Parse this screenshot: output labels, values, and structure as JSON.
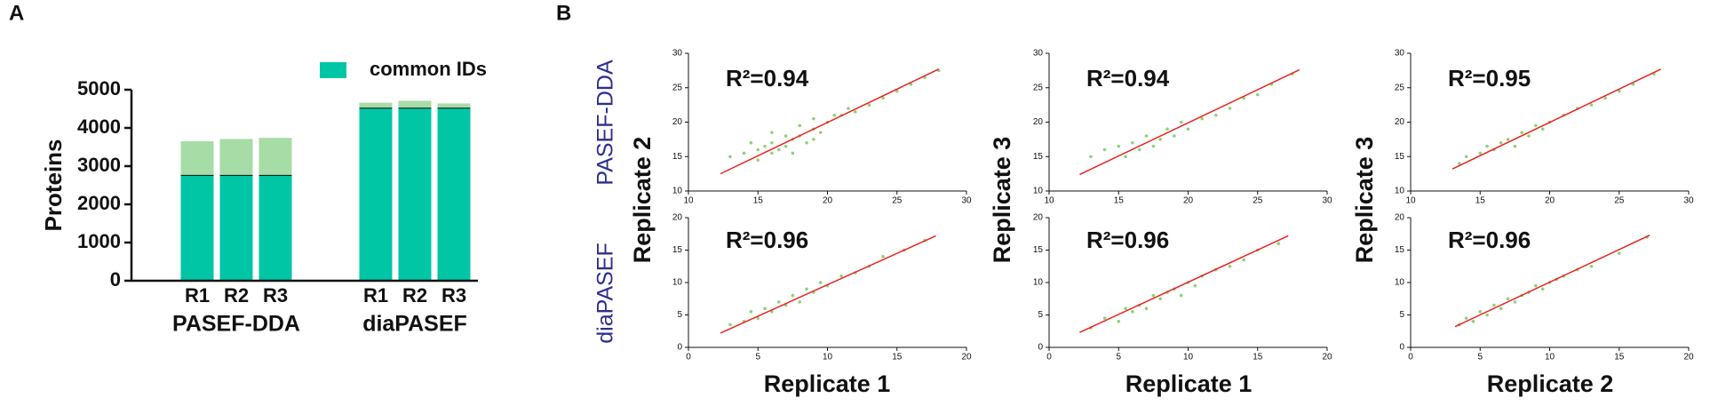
{
  "figure": {
    "panel_labels": [
      "A",
      "B"
    ],
    "row_labels": [
      "PASEF-DDA",
      "diaPASEF"
    ],
    "column_axis_labels": [
      {
        "y": "Replicate 2",
        "x": "Replicate 1"
      },
      {
        "y": "Replicate 3",
        "x": "Replicate 1"
      },
      {
        "y": "Replicate 3",
        "x": "Replicate 2"
      }
    ]
  },
  "chart_data": [
    {
      "type": "bar",
      "ylabel": "Proteins",
      "categories": [
        "R1",
        "R2",
        "R3",
        "R1",
        "R2",
        "R3"
      ],
      "group_labels": [
        "PASEF-DDA",
        "diaPASEF"
      ],
      "series": [
        {
          "name": "common IDs",
          "color": "#00c6a6",
          "values": [
            2770,
            2770,
            2770,
            4530,
            4530,
            4530
          ]
        },
        {
          "color": "#a6dca5",
          "values": [
            880,
            940,
            970,
            130,
            180,
            110
          ]
        }
      ],
      "ylim": [
        0,
        5000
      ],
      "yticks": [
        0,
        1000,
        2000,
        3000,
        4000,
        5000
      ]
    },
    {
      "type": "scatter",
      "annotation": "R²=0.94",
      "color": "#8fd17a",
      "xlim": [
        10,
        30
      ],
      "ylim": [
        10,
        30
      ],
      "xticks": [
        10,
        15,
        20,
        25,
        30
      ],
      "yticks": [
        10,
        15,
        20,
        25,
        30
      ],
      "x": [
        13,
        14,
        14.5,
        15,
        15,
        15.5,
        16,
        16,
        16.5,
        17,
        17,
        17.5,
        18,
        18,
        18.5,
        19,
        19,
        19.5,
        20,
        20.5,
        21,
        21.5,
        22,
        23,
        24,
        25,
        26,
        27,
        28,
        16,
        17.5,
        19
      ],
      "y": [
        15,
        15.5,
        17,
        16,
        14.5,
        16.5,
        17,
        15.5,
        16,
        18,
        16.5,
        17.5,
        18,
        19.5,
        17,
        19,
        20.5,
        18.5,
        20,
        21,
        21,
        22,
        21.5,
        22.5,
        23.5,
        24.5,
        25.5,
        26.5,
        27.5,
        18.5,
        15.5,
        17.5
      ],
      "fit": {
        "color": "#e8251f",
        "x": [
          12.3,
          28
        ],
        "y": [
          12.5,
          27.7
        ]
      }
    },
    {
      "type": "scatter",
      "annotation": "R²=0.94",
      "color": "#8fd17a",
      "xlim": [
        10,
        30
      ],
      "ylim": [
        10,
        30
      ],
      "xticks": [
        10,
        15,
        20,
        25,
        30
      ],
      "yticks": [
        10,
        15,
        20,
        25,
        30
      ],
      "x": [
        13,
        14,
        15,
        15.5,
        16,
        16.5,
        17,
        17.5,
        18,
        18.5,
        19,
        19.5,
        20,
        21,
        22,
        23,
        24,
        25,
        26,
        27.5
      ],
      "y": [
        15,
        16,
        16.5,
        15,
        17,
        16,
        18,
        16.5,
        17.5,
        19,
        18,
        20,
        19,
        20.5,
        21,
        22,
        23.5,
        24,
        25.5,
        27
      ],
      "fit": {
        "color": "#e8251f",
        "x": [
          12.2,
          28
        ],
        "y": [
          12.4,
          27.6
        ]
      }
    },
    {
      "type": "scatter",
      "annotation": "R²=0.95",
      "color": "#8fd17a",
      "xlim": [
        10,
        30
      ],
      "ylim": [
        10,
        30
      ],
      "xticks": [
        10,
        15,
        20,
        25,
        30
      ],
      "yticks": [
        10,
        15,
        20,
        25,
        30
      ],
      "x": [
        13.5,
        14,
        15,
        15.5,
        16,
        16.5,
        17,
        17.5,
        18,
        18.5,
        19,
        19.5,
        20,
        21,
        22,
        23,
        24,
        25,
        26,
        27.5
      ],
      "y": [
        14,
        15,
        15.5,
        16.5,
        16,
        17,
        17.5,
        16.5,
        18.5,
        18,
        19.5,
        19,
        20,
        21,
        22,
        22.5,
        23.5,
        24.5,
        25.5,
        27
      ],
      "fit": {
        "color": "#e8251f",
        "x": [
          13,
          28
        ],
        "y": [
          13.2,
          27.7
        ]
      }
    },
    {
      "type": "scatter",
      "annotation": "R²=0.96",
      "color": "#8fd17a",
      "xlim": [
        0,
        20
      ],
      "ylim": [
        0,
        20
      ],
      "xticks": [
        0,
        5,
        10,
        15,
        20
      ],
      "yticks": [
        0,
        5,
        10,
        15,
        20
      ],
      "x": [
        3,
        4,
        4.5,
        5,
        5.5,
        6,
        6.5,
        7,
        7.5,
        8,
        8.5,
        9,
        9.5,
        10,
        11,
        12,
        13,
        14,
        15.5,
        17
      ],
      "y": [
        3.5,
        4,
        5.5,
        4.5,
        6,
        5.5,
        7,
        6.5,
        8,
        7,
        9,
        8.5,
        10,
        9.5,
        11,
        11.5,
        12.5,
        14,
        15,
        16.5
      ],
      "fit": {
        "color": "#e8251f",
        "x": [
          2.3,
          17.8
        ],
        "y": [
          2.2,
          17.2
        ]
      }
    },
    {
      "type": "scatter",
      "annotation": "R²=0.96",
      "color": "#8fd17a",
      "xlim": [
        0,
        20
      ],
      "ylim": [
        0,
        20
      ],
      "xticks": [
        0,
        5,
        10,
        15,
        20
      ],
      "yticks": [
        0,
        5,
        10,
        15,
        20
      ],
      "x": [
        3,
        4,
        5,
        5.5,
        6,
        6.5,
        7,
        7.5,
        8,
        8.5,
        9,
        9.5,
        10,
        10.5,
        11,
        12,
        13,
        14,
        15,
        16.5
      ],
      "y": [
        3,
        4.5,
        4,
        6,
        5.5,
        6.5,
        6,
        8,
        7.5,
        8.5,
        9,
        8,
        10,
        9.5,
        11,
        12,
        12.5,
        13.5,
        15,
        16
      ],
      "fit": {
        "color": "#e8251f",
        "x": [
          2.2,
          17.2
        ],
        "y": [
          2.3,
          17.2
        ]
      }
    },
    {
      "type": "scatter",
      "annotation": "R²=0.96",
      "color": "#8fd17a",
      "xlim": [
        0,
        20
      ],
      "ylim": [
        0,
        20
      ],
      "xticks": [
        0,
        5,
        10,
        15,
        20
      ],
      "yticks": [
        0,
        5,
        10,
        15,
        20
      ],
      "x": [
        3.5,
        4,
        4.5,
        5,
        5.5,
        6,
        6.5,
        7,
        7.5,
        8,
        8.5,
        9,
        9.5,
        10,
        10.5,
        11,
        12,
        13,
        15,
        17
      ],
      "y": [
        3.5,
        4.5,
        4,
        5.5,
        5,
        6.5,
        6,
        7.5,
        7,
        8,
        8.5,
        9.5,
        9,
        10,
        10.5,
        11,
        12,
        12.5,
        14.5,
        17
      ],
      "fit": {
        "color": "#e8251f",
        "x": [
          3.2,
          17.2
        ],
        "y": [
          3.2,
          17.3
        ]
      }
    }
  ]
}
